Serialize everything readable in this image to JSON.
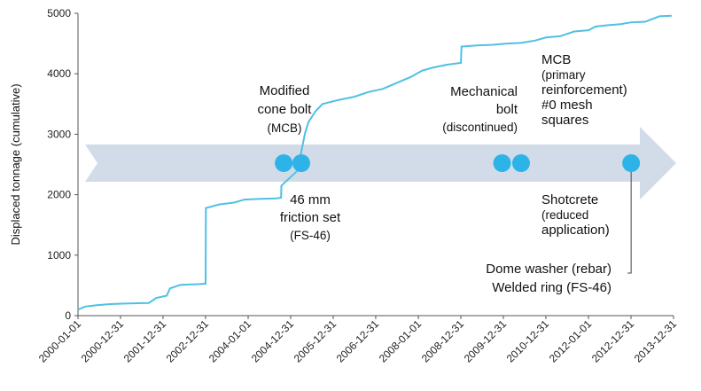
{
  "chart_data": {
    "type": "line",
    "title": "",
    "xlabel": "",
    "ylabel": "Displaced tonnage (cumulative)",
    "ylim": [
      0,
      5000
    ],
    "yticks": [
      "0",
      "1000",
      "2000",
      "3000",
      "4000",
      "5000"
    ],
    "xlim": [
      "2000-01-01",
      "2013-12-31"
    ],
    "xticks": [
      "2000-01-01",
      "2000-12-31",
      "2001-12-31",
      "2002-12-31",
      "2004-01-01",
      "2004-12-31",
      "2005-12-31",
      "2006-12-31",
      "2008-01-01",
      "2008-12-31",
      "2009-12-31",
      "2010-12-31",
      "2012-01-01",
      "2012-12-31",
      "2013-12-31"
    ],
    "line_color": "#4fc0e4",
    "series": [
      {
        "name": "",
        "x": [
          "2000-01-01",
          "2000-03-01",
          "2000-06-01",
          "2000-10-01",
          "2001-02-01",
          "2001-06-01",
          "2001-09-01",
          "2001-11-01",
          "2002-02-01",
          "2002-03-01",
          "2002-06-01",
          "2002-11-01",
          "2003-01-01",
          "2003-01-03",
          "2003-05-01",
          "2003-09-01",
          "2003-12-01",
          "2004-04-01",
          "2004-09-01",
          "2004-10-10",
          "2004-10-12",
          "2005-03-01",
          "2005-05-01",
          "2005-06-01",
          "2005-08-01",
          "2005-10-01",
          "2006-02-01",
          "2006-07-01",
          "2006-11-01",
          "2007-03-01",
          "2007-07-01",
          "2007-11-01",
          "2008-02-01",
          "2008-05-01",
          "2008-09-01",
          "2009-01-01",
          "2009-01-05",
          "2009-06-01",
          "2009-10-01",
          "2010-02-01",
          "2010-06-01",
          "2010-10-01",
          "2011-01-01",
          "2011-05-01",
          "2011-09-01",
          "2012-01-01",
          "2012-03-01",
          "2012-06-01",
          "2012-10-01",
          "2013-01-01",
          "2013-05-01",
          "2013-09-01",
          "2013-12-15"
        ],
        "y": [
          100,
          150,
          170,
          190,
          200,
          205,
          210,
          290,
          330,
          450,
          510,
          520,
          530,
          1780,
          1840,
          1870,
          1920,
          1930,
          1940,
          1950,
          2150,
          2400,
          3000,
          3200,
          3380,
          3500,
          3560,
          3620,
          3700,
          3750,
          3850,
          3950,
          4050,
          4100,
          4150,
          4180,
          4450,
          4470,
          4480,
          4500,
          4510,
          4550,
          4600,
          4620,
          4700,
          4720,
          4780,
          4800,
          4820,
          4850,
          4860,
          4950,
          4960
        ]
      }
    ],
    "arrow_color": "#d1dce8",
    "marker_color": "#2eb3e8",
    "markers": [
      {
        "x": "2004-11-01",
        "label": "",
        "label_lines": [
          "46 mm",
          "friction set",
          "(FS-46)"
        ]
      },
      {
        "x": "2005-04-01",
        "label": "",
        "label_lines": [
          "Modified",
          "cone bolt",
          "(MCB)"
        ]
      },
      {
        "x": "2009-12-20",
        "label": "",
        "label_lines": [
          "Mechanical",
          "bolt",
          "(discontinued)"
        ]
      },
      {
        "x": "2010-06-01",
        "label": "",
        "label_lines": [
          "MCB",
          "(primary",
          "reinforcement)",
          "#0 mesh",
          "squares"
        ],
        "label_lines_2": [
          "Shotcrete",
          "(reduced",
          "application)"
        ]
      },
      {
        "x": "2013-01-01",
        "label": "",
        "label_lines": [
          "Dome washer (rebar)",
          "Welded ring (FS-46)"
        ]
      }
    ]
  }
}
